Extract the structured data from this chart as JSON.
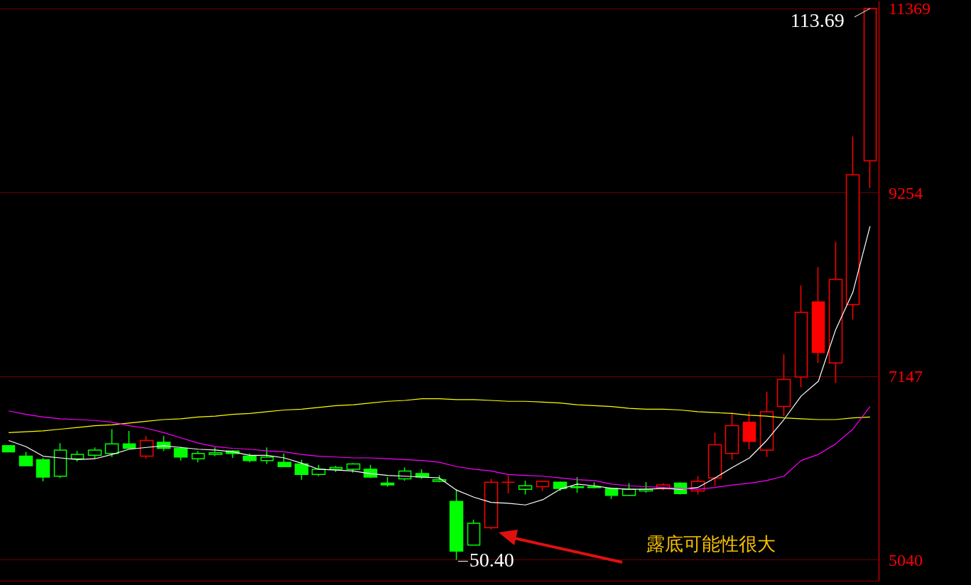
{
  "chart_data": {
    "type": "candlestick",
    "categories": [
      null,
      null,
      null,
      null,
      null,
      null,
      null,
      null,
      null,
      null,
      null,
      null,
      null,
      null,
      null,
      null,
      null,
      null,
      null,
      null,
      null,
      null,
      null,
      null,
      null,
      null,
      null,
      null,
      null,
      null,
      null,
      null,
      null,
      null,
      null,
      null,
      null,
      null,
      null,
      null,
      null,
      null,
      null,
      null,
      null,
      null,
      null,
      null,
      null,
      null,
      null
    ],
    "ohlc": [
      [
        6350,
        6350,
        6280,
        6280
      ],
      [
        6230,
        6280,
        6120,
        6120
      ],
      [
        6190,
        6210,
        5940,
        5990
      ],
      [
        6000,
        6380,
        5980,
        6300
      ],
      [
        6200,
        6290,
        6170,
        6250
      ],
      [
        6240,
        6330,
        6200,
        6300
      ],
      [
        6260,
        6540,
        6220,
        6370
      ],
      [
        6370,
        6520,
        6320,
        6320
      ],
      [
        6230,
        6460,
        6200,
        6410
      ],
      [
        6390,
        6460,
        6290,
        6320
      ],
      [
        6320,
        6340,
        6180,
        6220
      ],
      [
        6200,
        6290,
        6160,
        6260
      ],
      [
        6250,
        6330,
        6230,
        6270
      ],
      [
        6290,
        6300,
        6210,
        6260
      ],
      [
        6230,
        6260,
        6160,
        6180
      ],
      [
        6180,
        6330,
        6140,
        6220
      ],
      [
        6160,
        6260,
        6110,
        6110
      ],
      [
        6140,
        6190,
        5960,
        6020
      ],
      [
        6020,
        6130,
        6000,
        6080
      ],
      [
        6080,
        6120,
        6050,
        6100
      ],
      [
        6080,
        6150,
        6040,
        6140
      ],
      [
        6080,
        6130,
        5980,
        5990
      ],
      [
        5920,
        5990,
        5880,
        5900
      ],
      [
        5970,
        6100,
        5950,
        6060
      ],
      [
        6030,
        6080,
        5970,
        5990
      ],
      [
        5940,
        6010,
        5930,
        5960
      ],
      [
        5710,
        5850,
        5040,
        5140
      ],
      [
        5210,
        5500,
        5210,
        5460
      ],
      [
        5410,
        5970,
        5390,
        5930
      ],
      [
        5930,
        6010,
        5800,
        5930
      ],
      [
        5850,
        5950,
        5790,
        5890
      ],
      [
        5880,
        5950,
        5830,
        5940
      ],
      [
        5930,
        5940,
        5830,
        5860
      ],
      [
        5880,
        5990,
        5810,
        5870
      ],
      [
        5880,
        5930,
        5860,
        5870
      ],
      [
        5860,
        5870,
        5740,
        5780
      ],
      [
        5780,
        5920,
        5780,
        5850
      ],
      [
        5830,
        5930,
        5810,
        5850
      ],
      [
        5860,
        5920,
        5840,
        5900
      ],
      [
        5920,
        5930,
        5790,
        5800
      ],
      [
        5830,
        6000,
        5790,
        5940
      ],
      [
        5980,
        6500,
        5890,
        6360
      ],
      [
        6260,
        6730,
        6190,
        6580
      ],
      [
        6620,
        6740,
        6310,
        6400
      ],
      [
        6300,
        6970,
        6220,
        6740
      ],
      [
        6800,
        7400,
        6690,
        7110
      ],
      [
        7140,
        8190,
        7020,
        7880
      ],
      [
        8000,
        8400,
        7300,
        7420
      ],
      [
        7300,
        8690,
        7070,
        8260
      ],
      [
        7970,
        9900,
        7800,
        9460
      ],
      [
        9620,
        11369,
        9310,
        11369
      ]
    ],
    "colors": [
      "#00ff00",
      "#00ff00",
      "#00ff00",
      "#00ff00",
      "#00ff00",
      "#00ff00",
      "#00ff00",
      "#00ff00",
      "#ff0000",
      "#00ff00",
      "#00ff00",
      "#00ff00",
      "#00ff00",
      "#00ff00",
      "#00ff00",
      "#00ff00",
      "#00ff00",
      "#00ff00",
      "#00ff00",
      "#00ff00",
      "#00ff00",
      "#00ff00",
      "#00ff00",
      "#00ff00",
      "#00ff00",
      "#00ff00",
      "#00ff00",
      "#00ff00",
      "#ff0000",
      "#ff0000",
      "#00ff00",
      "#ff0000",
      "#00ff00",
      "#00ff00",
      "#00ff00",
      "#00ff00",
      "#00ff00",
      "#00ff00",
      "#ff0000",
      "#00ff00",
      "#ff0000",
      "#ff0000",
      "#ff0000",
      "#ff0000",
      "#ff0000",
      "#ff0000",
      "#ff0000",
      "#ff0000",
      "#ff0000",
      "#ff0000",
      "#ff0000"
    ],
    "series": [
      {
        "type": "line",
        "color": "#ffffff",
        "values": [
          6410,
          6340,
          6230,
          6210,
          6190,
          6200,
          6250,
          6310,
          6330,
          6350,
          6330,
          6310,
          6300,
          6280,
          6240,
          6240,
          6210,
          6150,
          6080,
          6070,
          6060,
          6030,
          6010,
          6000,
          5990,
          5980,
          5840,
          5760,
          5700,
          5690,
          5670,
          5730,
          5850,
          5910,
          5890,
          5860,
          5850,
          5850,
          5860,
          5850,
          5870,
          5980,
          6100,
          6210,
          6410,
          6650,
          6920,
          7090,
          7680,
          8110,
          8870
        ]
      },
      {
        "type": "line",
        "color": "#ffff00",
        "values": [
          6500,
          6510,
          6520,
          6540,
          6560,
          6580,
          6590,
          6610,
          6630,
          6650,
          6660,
          6680,
          6690,
          6710,
          6720,
          6740,
          6760,
          6770,
          6790,
          6810,
          6820,
          6840,
          6860,
          6870,
          6890,
          6890,
          6880,
          6880,
          6870,
          6860,
          6860,
          6850,
          6840,
          6820,
          6810,
          6800,
          6780,
          6770,
          6770,
          6760,
          6740,
          6730,
          6720,
          6700,
          6690,
          6670,
          6660,
          6650,
          6650,
          6670,
          6680
        ]
      },
      {
        "type": "line",
        "color": "#ff00ff",
        "values": [
          6750,
          6710,
          6680,
          6660,
          6650,
          6640,
          6620,
          6580,
          6550,
          6500,
          6440,
          6380,
          6340,
          6320,
          6310,
          6290,
          6280,
          6250,
          6230,
          6220,
          6210,
          6210,
          6200,
          6190,
          6180,
          6160,
          6110,
          6080,
          6060,
          6020,
          6010,
          6000,
          5980,
          5960,
          5950,
          5910,
          5890,
          5880,
          5870,
          5860,
          5850,
          5870,
          5900,
          5920,
          5950,
          6000,
          6180,
          6250,
          6370,
          6540,
          6800
        ]
      }
    ],
    "ylim": [
      4800,
      11450
    ],
    "yticks": [
      5040,
      7147,
      9254,
      11369
    ],
    "grid": "y",
    "annotations": [
      "113.69",
      "50.40",
      "露底可能性很大"
    ]
  }
}
